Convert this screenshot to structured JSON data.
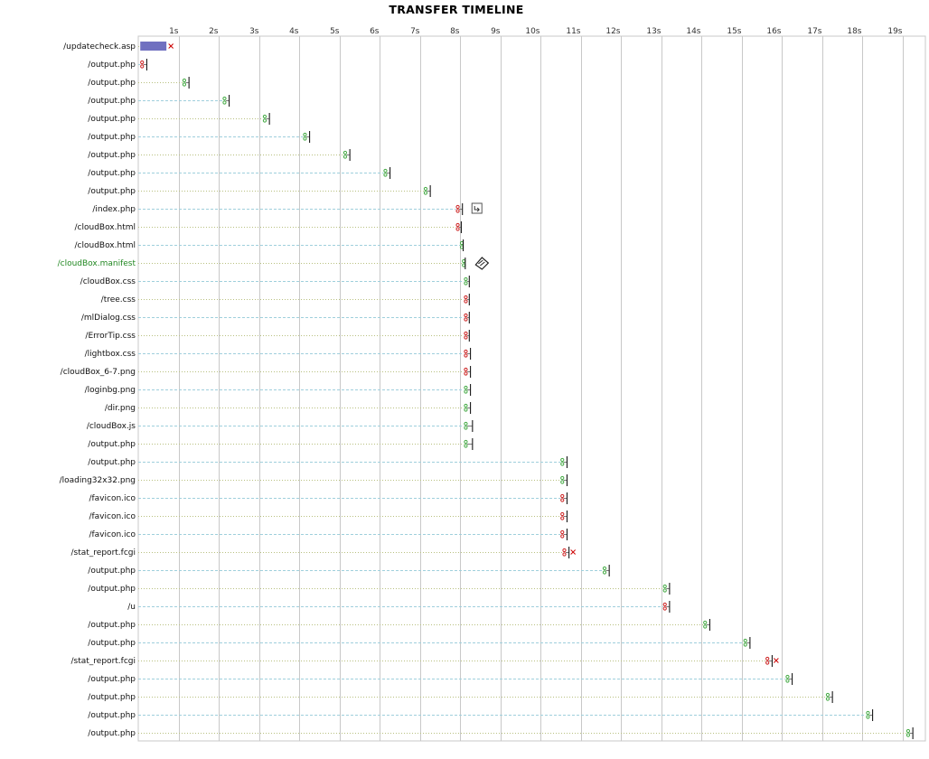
{
  "title": "TRANSFER TIMELINE",
  "chart_data": {
    "type": "timeline",
    "title": "TRANSFER TIMELINE",
    "unit": "s",
    "xlim": [
      0,
      19.7
    ],
    "ticks": [
      "1s",
      "2s",
      "3s",
      "4s",
      "5s",
      "6s",
      "7s",
      "8s",
      "9s",
      "10s",
      "11s",
      "12s",
      "13s",
      "14s",
      "15s",
      "16s",
      "17s",
      "18s",
      "19s"
    ],
    "colors": {
      "grid": "#c8c8c8",
      "row_dashed": "#9fcfdc",
      "row_dotted": "#b8c080",
      "marker_green": "#44aa44",
      "marker_red": "#cc2222",
      "bar_blue": "#1a1a9a",
      "label_green": "#228822",
      "error": "#cc0000"
    },
    "rows": [
      {
        "url": "/updatecheck.asp",
        "start": 0.05,
        "end": 0.7,
        "marker": "red",
        "error": true,
        "bar": true
      },
      {
        "url": "/output.php",
        "start": 0.05,
        "end": 0.2,
        "marker": "red"
      },
      {
        "url": "/output.php",
        "start": 1.1,
        "end": 1.25,
        "marker": "green"
      },
      {
        "url": "/output.php",
        "start": 2.1,
        "end": 2.25,
        "marker": "green"
      },
      {
        "url": "/output.php",
        "start": 3.1,
        "end": 3.25,
        "marker": "green"
      },
      {
        "url": "/output.php",
        "start": 4.1,
        "end": 4.25,
        "marker": "green"
      },
      {
        "url": "/output.php",
        "start": 5.1,
        "end": 5.25,
        "marker": "green"
      },
      {
        "url": "/output.php",
        "start": 6.1,
        "end": 6.25,
        "marker": "green"
      },
      {
        "url": "/output.php",
        "start": 7.1,
        "end": 7.25,
        "marker": "green"
      },
      {
        "url": "/index.php",
        "start": 7.9,
        "end": 8.05,
        "marker": "red",
        "icon": "redirect-icon"
      },
      {
        "url": "/cloudBox.html",
        "start": 7.9,
        "end": 8.02,
        "marker": "red"
      },
      {
        "url": "/cloudBox.html",
        "start": 8.0,
        "end": 8.07,
        "marker": "green"
      },
      {
        "url": "/cloudBox.manifest",
        "start": 8.05,
        "end": 8.12,
        "marker": "green",
        "green_label": true,
        "icon": "manifest-icon"
      },
      {
        "url": "/cloudBox.css",
        "start": 8.1,
        "end": 8.22,
        "marker": "green"
      },
      {
        "url": "/tree.css",
        "start": 8.1,
        "end": 8.22,
        "marker": "red"
      },
      {
        "url": "/mlDialog.css",
        "start": 8.1,
        "end": 8.22,
        "marker": "red"
      },
      {
        "url": "/ErrorTip.css",
        "start": 8.1,
        "end": 8.22,
        "marker": "red"
      },
      {
        "url": "/lightbox.css",
        "start": 8.1,
        "end": 8.25,
        "marker": "red"
      },
      {
        "url": "/cloudBox_6-7.png",
        "start": 8.1,
        "end": 8.25,
        "marker": "red"
      },
      {
        "url": "/loginbg.png",
        "start": 8.1,
        "end": 8.25,
        "marker": "green"
      },
      {
        "url": "/dir.png",
        "start": 8.1,
        "end": 8.25,
        "marker": "green"
      },
      {
        "url": "/cloudBox.js",
        "start": 8.1,
        "end": 8.3,
        "marker": "green"
      },
      {
        "url": "/output.php",
        "start": 8.1,
        "end": 8.3,
        "marker": "green"
      },
      {
        "url": "/output.php",
        "start": 10.5,
        "end": 10.65,
        "marker": "green"
      },
      {
        "url": "/loading32x32.png",
        "start": 10.5,
        "end": 10.65,
        "marker": "green"
      },
      {
        "url": "/favicon.ico",
        "start": 10.5,
        "end": 10.65,
        "marker": "red"
      },
      {
        "url": "/favicon.ico",
        "start": 10.5,
        "end": 10.65,
        "marker": "red"
      },
      {
        "url": "/favicon.ico",
        "start": 10.5,
        "end": 10.65,
        "marker": "red"
      },
      {
        "url": "/stat_report.fcgi",
        "start": 10.55,
        "end": 10.7,
        "marker": "red",
        "error": true
      },
      {
        "url": "/output.php",
        "start": 11.55,
        "end": 11.7,
        "marker": "green"
      },
      {
        "url": "/output.php",
        "start": 13.05,
        "end": 13.2,
        "marker": "green"
      },
      {
        "url": "/u",
        "start": 13.05,
        "end": 13.2,
        "marker": "red"
      },
      {
        "url": "/output.php",
        "start": 14.05,
        "end": 14.2,
        "marker": "green"
      },
      {
        "url": "/output.php",
        "start": 15.05,
        "end": 15.2,
        "marker": "green"
      },
      {
        "url": "/stat_report.fcgi",
        "start": 15.6,
        "end": 15.75,
        "marker": "red",
        "error": true
      },
      {
        "url": "/output.php",
        "start": 16.1,
        "end": 16.25,
        "marker": "green"
      },
      {
        "url": "/output.php",
        "start": 17.1,
        "end": 17.25,
        "marker": "green"
      },
      {
        "url": "/output.php",
        "start": 18.1,
        "end": 18.25,
        "marker": "green"
      },
      {
        "url": "/output.php",
        "start": 19.1,
        "end": 19.25,
        "marker": "green"
      }
    ]
  }
}
